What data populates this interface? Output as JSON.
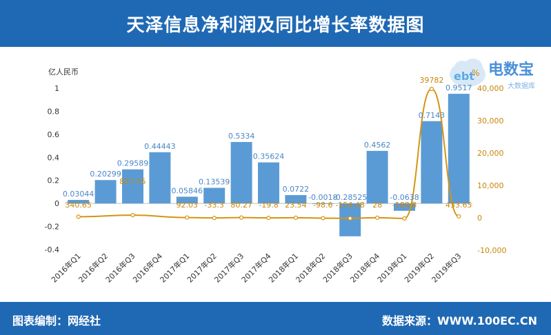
{
  "header": {
    "title": "天泽信息净利润及同比增长率数据图"
  },
  "footer": {
    "left": "图表编制：网经社",
    "right": "数据来源：WWW.100EC.CN"
  },
  "logo": {
    "brand": "电数宝",
    "subtitle": "大数据库",
    "mark": "ebt"
  },
  "colors": {
    "header_bg": "#1f69b4",
    "bar": "#5b9bd5",
    "line": "#d4940f",
    "axis_text": "#333333",
    "right_axis_text": "#c8860a"
  },
  "chart_data": {
    "type": "bar",
    "y_left_unit": "亿人民币",
    "y_right_unit": "%",
    "categories": [
      "2016年Q1",
      "2016年Q2",
      "2016年Q3",
      "2016年Q4",
      "2017年Q1",
      "2017年Q2",
      "2017年Q3",
      "2017年Q4",
      "2018年Q1",
      "2018年Q2",
      "2018年Q3",
      "2018年Q4",
      "2019年Q1",
      "2019年Q2",
      "2019年Q3"
    ],
    "bar_values": [
      0.03044,
      0.20299,
      0.29589,
      0.44443,
      0.05846,
      0.13539,
      0.5334,
      0.35624,
      0.0722,
      -0.0018,
      -0.28525,
      0.4562,
      -0.0638,
      0.7143,
      0.9517
    ],
    "bar_labels": [
      "0.03044",
      "0.20299",
      "0.29589",
      "0.44443",
      "0.05846",
      "0.13539",
      "0.5334",
      "0.35624",
      "0.0722",
      "-0.0018",
      "-0.28525",
      "0.4562",
      "-0.0638",
      "0.7143",
      "0.9517"
    ],
    "line_values": [
      340.65,
      null,
      827.35,
      null,
      92.03,
      -33.3,
      80.27,
      -19.8,
      23.54,
      -98.6,
      -154.48,
      28,
      -188.8,
      39782,
      433.65
    ],
    "line_labels": [
      "340.65",
      "",
      "827.35",
      "",
      "92.03",
      "-33.3",
      "80.27",
      "-19.8",
      "23.54",
      "-98.6",
      "-154.48",
      "28",
      "-188.8",
      "39782",
      "433.65"
    ],
    "left_ticks": [
      "1",
      "0.8",
      "0.6",
      "0.4",
      "0.2",
      "0",
      "-0.2",
      "-0.4"
    ],
    "right_ticks": [
      "40,000",
      "30,000",
      "20,000",
      "10,000",
      "0",
      "-10,000"
    ],
    "ylim_left": [
      -0.4,
      1
    ],
    "ylim_right": [
      -10000,
      40000
    ]
  }
}
